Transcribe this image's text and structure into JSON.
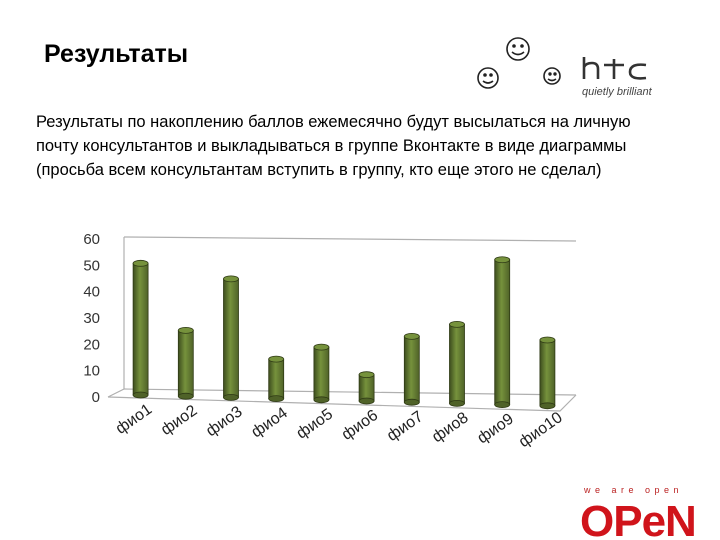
{
  "slide": {
    "title": "Результаты",
    "text": "Результаты по накоплению баллов ежемесячно будут высылаться на личную почту консультантов и  выкладываться в группе Вконтакте в виде диаграммы (просьба всем консультантам вступить в группу, кто еще этого не сделал)"
  },
  "logos": {
    "htc": {
      "brand": "htc",
      "tagline": "quietly brilliant"
    },
    "open": {
      "slogan": "we are open",
      "brand": "OPeN"
    }
  },
  "chart_data": {
    "type": "bar",
    "categories": [
      "фио1",
      "фио2",
      "фио3",
      "фио4",
      "фио5",
      "фио6",
      "фио7",
      "фио8",
      "фио9",
      "фио10"
    ],
    "values": [
      50,
      25,
      45,
      15,
      20,
      10,
      25,
      30,
      55,
      25
    ],
    "ylim": [
      0,
      60
    ],
    "yticks": [
      0,
      10,
      20,
      30,
      40,
      50,
      60
    ],
    "grid": false,
    "bar_color": "#4f6228",
    "bar_highlight": "#76923c"
  }
}
